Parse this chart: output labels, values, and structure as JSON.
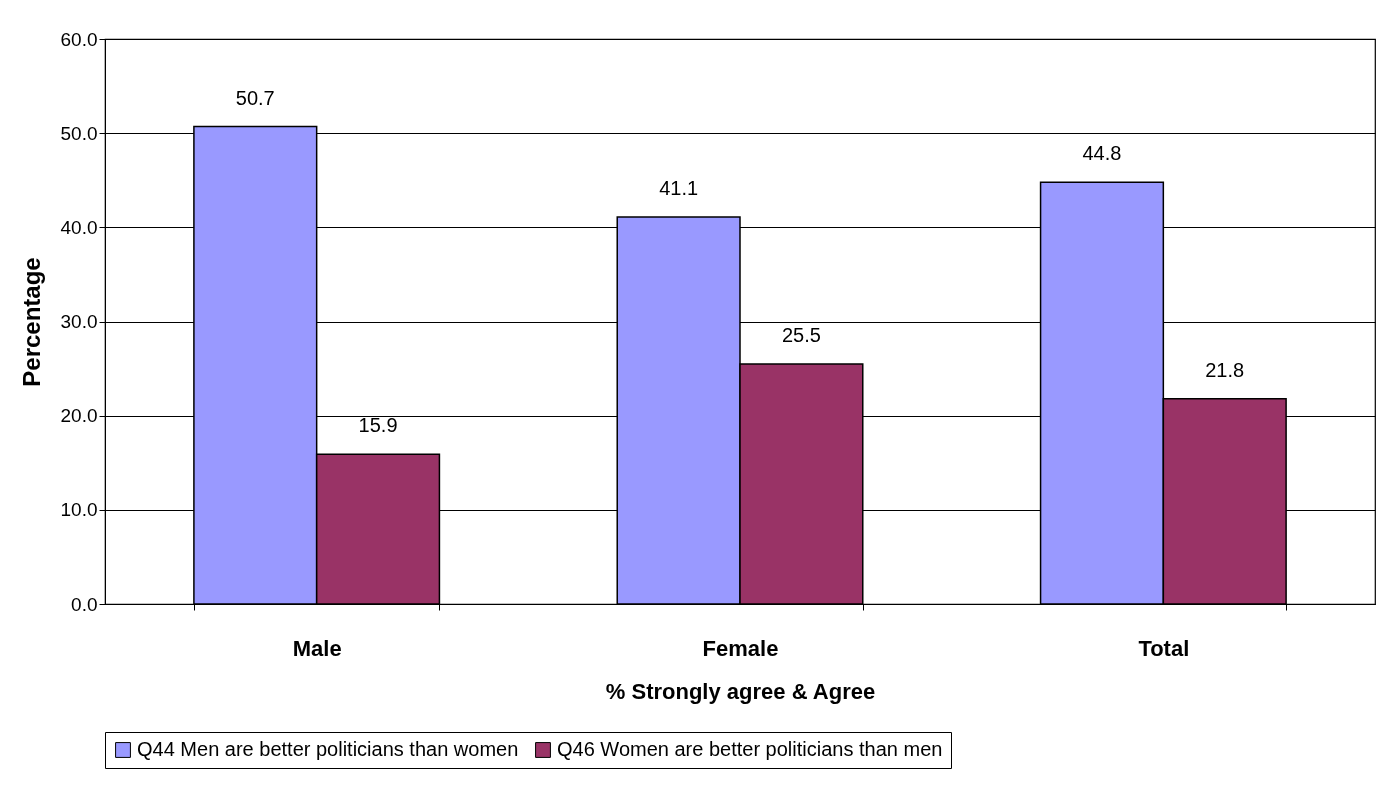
{
  "chart_data": {
    "type": "bar",
    "xlabel": "% Strongly agree & Agree",
    "ylabel": "Percentage",
    "categories": [
      "Male",
      "Female",
      "Total"
    ],
    "series": [
      {
        "name": "Q44 Men are better politicians than women",
        "color": "#9999ff",
        "values": [
          50.7,
          41.1,
          44.8
        ]
      },
      {
        "name": "Q46 Women are better politicians than men",
        "color": "#993366",
        "values": [
          15.9,
          25.5,
          21.8
        ]
      }
    ],
    "ylim": [
      0,
      60
    ],
    "yticks": [
      {
        "value": 0,
        "label": "0.0"
      },
      {
        "value": 10,
        "label": "10.0"
      },
      {
        "value": 20,
        "label": "20.0"
      },
      {
        "value": 30,
        "label": "30.0"
      },
      {
        "value": 40,
        "label": "40.0"
      },
      {
        "value": 50,
        "label": "50.0"
      },
      {
        "value": 60,
        "label": "60.0"
      }
    ],
    "grid": "y",
    "legend": "bottom",
    "data_labels": true
  }
}
